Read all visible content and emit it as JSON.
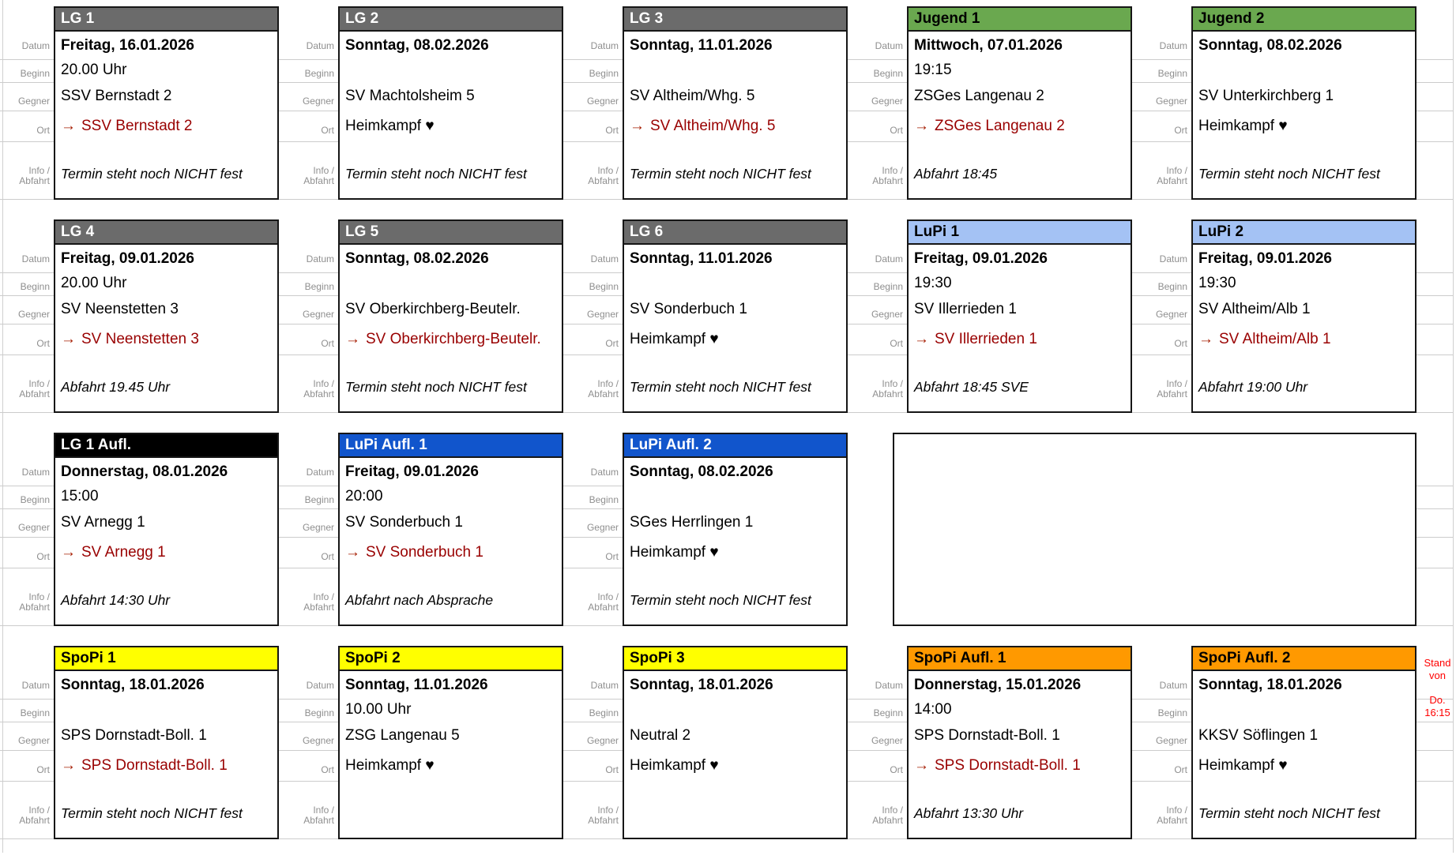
{
  "row_labels": {
    "datum": "Datum",
    "beginn": "Beginn",
    "gegner": "Gegner",
    "ort": "Ort",
    "info1": "Info /",
    "info2": "Abfahrt"
  },
  "away_arrow": "→",
  "stand_note": {
    "line1": "Stand",
    "line2": "von",
    "line3": "Do.",
    "line4": "16:15"
  },
  "colors": {
    "gray": {
      "bg": "#6b6b6b",
      "fg": "#ffffff"
    },
    "green": {
      "bg": "#6aa84f",
      "fg": "#000000"
    },
    "lightblue": {
      "bg": "#a4c2f4",
      "fg": "#000000"
    },
    "black": {
      "bg": "#000000",
      "fg": "#ffffff"
    },
    "blue": {
      "bg": "#1155cc",
      "fg": "#ffffff"
    },
    "yellow": {
      "bg": "#ffff00",
      "fg": "#000000"
    },
    "orange": {
      "bg": "#ff9900",
      "fg": "#000000"
    },
    "away_text": "#990000",
    "away_arrow": "#a61c00",
    "note_red": "#ff0000"
  },
  "rows": [
    {
      "cards": [
        {
          "title": "LG 1",
          "style": "gray",
          "datum": "Freitag, 16.01.2026",
          "beginn": "20.00 Uhr",
          "gegner": "SSV Bernstadt 2",
          "ort_type": "away",
          "ort": "SSV Bernstadt 2",
          "info": "Termin steht noch NICHT fest"
        },
        {
          "title": "LG 2",
          "style": "gray",
          "datum": "Sonntag, 08.02.2026",
          "beginn": "",
          "gegner": "SV Machtolsheim 5",
          "ort_type": "home",
          "ort": "Heimkampf ♥",
          "info": "Termin steht noch NICHT fest"
        },
        {
          "title": "LG 3",
          "style": "gray",
          "datum": "Sonntag, 11.01.2026",
          "beginn": "",
          "gegner": "SV Altheim/Whg. 5",
          "ort_type": "away",
          "ort": "SV Altheim/Whg. 5",
          "info": "Termin steht noch NICHT fest"
        },
        {
          "title": "Jugend 1",
          "style": "green",
          "datum": "Mittwoch, 07.01.2026",
          "beginn": "19:15",
          "gegner": "ZSGes Langenau 2",
          "ort_type": "away",
          "ort": "ZSGes Langenau 2",
          "info": "Abfahrt 18:45"
        },
        {
          "title": "Jugend 2",
          "style": "green",
          "datum": "Sonntag, 08.02.2026",
          "beginn": "",
          "gegner": "SV Unterkirchberg 1",
          "ort_type": "home",
          "ort": "Heimkampf ♥",
          "info": "Termin steht noch NICHT fest"
        }
      ]
    },
    {
      "cards": [
        {
          "title": "LG 4",
          "style": "gray",
          "datum": "Freitag, 09.01.2026",
          "beginn": "20.00 Uhr",
          "gegner": "SV Neenstetten 3",
          "ort_type": "away",
          "ort": "SV Neenstetten 3",
          "info": "Abfahrt 19.45 Uhr"
        },
        {
          "title": "LG 5",
          "style": "gray",
          "datum": "Sonntag, 08.02.2026",
          "beginn": "",
          "gegner": "SV Oberkirchberg-Beutelr.",
          "ort_type": "away",
          "ort": "SV Oberkirchberg-Beutelr.",
          "info": "Termin steht noch NICHT fest"
        },
        {
          "title": "LG 6",
          "style": "gray",
          "datum": "Sonntag, 11.01.2026",
          "beginn": "",
          "gegner": "SV Sonderbuch 1",
          "ort_type": "home",
          "ort": "Heimkampf ♥",
          "info": "Termin steht noch NICHT fest"
        },
        {
          "title": "LuPi 1",
          "style": "lightblue",
          "datum": "Freitag, 09.01.2026",
          "beginn": "19:30",
          "gegner": "SV Illerrieden 1",
          "ort_type": "away",
          "ort": "SV Illerrieden 1",
          "info": "Abfahrt 18:45 SVE"
        },
        {
          "title": "LuPi 2",
          "style": "lightblue",
          "datum": "Freitag, 09.01.2026",
          "beginn": "19:30",
          "gegner": "SV Altheim/Alb 1",
          "ort_type": "away",
          "ort": "SV Altheim/Alb 1",
          "info": "Abfahrt 19:00 Uhr"
        }
      ]
    },
    {
      "empty_slot": true,
      "cards": [
        {
          "title": "LG 1 Aufl.",
          "style": "black",
          "datum": "Donnerstag, 08.01.2026",
          "beginn": "15:00",
          "gegner": "SV Arnegg 1",
          "ort_type": "away",
          "ort": "SV Arnegg 1",
          "info": "Abfahrt 14:30 Uhr"
        },
        {
          "title": "LuPi Aufl. 1",
          "style": "blue",
          "datum": "Freitag, 09.01.2026",
          "beginn": "20:00",
          "gegner": "SV Sonderbuch 1",
          "ort_type": "away",
          "ort": "SV Sonderbuch 1",
          "info": "Abfahrt nach Absprache"
        },
        {
          "title": "LuPi Aufl. 2",
          "style": "blue",
          "datum": "Sonntag, 08.02.2026",
          "beginn": "",
          "gegner": "SGes Herrlingen 1",
          "ort_type": "home",
          "ort": "Heimkampf ♥",
          "info": "Termin steht noch NICHT fest"
        }
      ]
    },
    {
      "cards": [
        {
          "title": "SpoPi 1",
          "style": "yellow",
          "datum": "Sonntag, 18.01.2026",
          "beginn": "",
          "gegner": "SPS Dornstadt-Boll. 1",
          "ort_type": "away",
          "ort": "SPS Dornstadt-Boll. 1",
          "info": "Termin steht noch NICHT fest"
        },
        {
          "title": "SpoPi 2",
          "style": "yellow",
          "datum": "Sonntag, 11.01.2026",
          "beginn": "10.00 Uhr",
          "gegner": "ZSG Langenau 5",
          "ort_type": "home",
          "ort": "Heimkampf ♥",
          "info": ""
        },
        {
          "title": "SpoPi 3",
          "style": "yellow",
          "datum": "Sonntag, 18.01.2026",
          "beginn": "",
          "gegner": "Neutral 2",
          "ort_type": "home",
          "ort": "Heimkampf ♥",
          "info": ""
        },
        {
          "title": "SpoPi Aufl. 1",
          "style": "orange",
          "datum": "Donnerstag, 15.01.2026",
          "beginn": "14:00",
          "gegner": "SPS Dornstadt-Boll. 1",
          "ort_type": "away",
          "ort": "SPS Dornstadt-Boll. 1",
          "info": "Abfahrt 13:30 Uhr"
        },
        {
          "title": "SpoPi Aufl. 2",
          "style": "orange",
          "datum": "Sonntag, 18.01.2026",
          "beginn": "",
          "gegner": "KKSV Söflingen 1",
          "ort_type": "home",
          "ort": "Heimkampf ♥",
          "info": "Termin steht noch NICHT fest"
        }
      ]
    }
  ]
}
